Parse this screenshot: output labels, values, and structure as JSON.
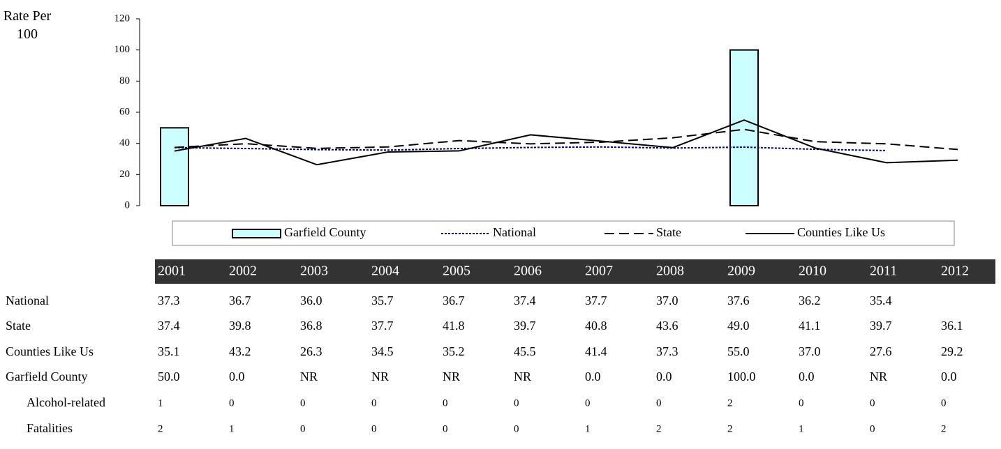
{
  "chart_data": {
    "type": "bar_line",
    "y_label": "Rate Per 100",
    "categories": [
      "2001",
      "2002",
      "2003",
      "2004",
      "2005",
      "2006",
      "2007",
      "2008",
      "2009",
      "2010",
      "2011",
      "2012"
    ],
    "ylim": [
      0,
      120
    ],
    "yticks": [
      0,
      20,
      40,
      60,
      80,
      100,
      120
    ],
    "series": [
      {
        "name": "Garfield County",
        "kind": "bar",
        "color": "#ccffff",
        "values": [
          50,
          0,
          null,
          null,
          null,
          null,
          0,
          0,
          100,
          0,
          null,
          0
        ],
        "value_labels": [
          "50.0",
          "0.0",
          "NR",
          "NR",
          "NR",
          "NR",
          "0.0",
          "0.0",
          "100.0",
          "0.0",
          "NR",
          "0.0"
        ]
      },
      {
        "name": "National",
        "kind": "line",
        "color": "#000080",
        "dash": "3,2",
        "values": [
          37.3,
          36.7,
          36.0,
          35.7,
          36.7,
          37.4,
          37.7,
          37.0,
          37.6,
          36.2,
          35.4,
          null
        ],
        "value_labels": [
          "37.3",
          "36.7",
          "36.0",
          "35.7",
          "36.7",
          "37.4",
          "37.7",
          "37.0",
          "37.6",
          "36.2",
          "35.4",
          null
        ]
      },
      {
        "name": "State",
        "kind": "line",
        "color": "#000000",
        "dash": "14,7",
        "values": [
          37.4,
          39.8,
          36.8,
          37.7,
          41.8,
          39.7,
          40.8,
          43.6,
          49.0,
          41.1,
          39.7,
          36.1
        ],
        "value_labels": [
          "37.4",
          "39.8",
          "36.8",
          "37.7",
          "41.8",
          "39.7",
          "40.8",
          "43.6",
          "49.0",
          "41.1",
          "39.7",
          "36.1"
        ]
      },
      {
        "name": "Counties Like Us",
        "kind": "line",
        "color": "#000000",
        "dash": "none",
        "values": [
          35.1,
          43.2,
          26.3,
          34.5,
          35.2,
          45.5,
          41.4,
          37.3,
          55.0,
          37.0,
          27.6,
          29.2
        ],
        "value_labels": [
          "35.1",
          "43.2",
          "26.3",
          "34.5",
          "35.2",
          "45.5",
          "41.4",
          "37.3",
          "55.0",
          "37.0",
          "27.6",
          "29.2"
        ]
      }
    ],
    "table_order": [
      1,
      2,
      3,
      0
    ]
  },
  "table_rows": [
    {
      "label": "Alcohol-related",
      "values": [
        1,
        0,
        0,
        0,
        0,
        0,
        0,
        0,
        2,
        0,
        0,
        0
      ]
    },
    {
      "label": "Fatalities",
      "values": [
        2,
        1,
        0,
        0,
        0,
        0,
        1,
        2,
        2,
        1,
        0,
        2
      ]
    }
  ]
}
